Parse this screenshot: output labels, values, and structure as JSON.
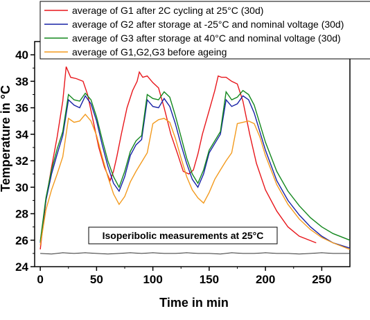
{
  "chart_data": {
    "type": "line",
    "xlabel": "Time in min",
    "ylabel": "Temperature in °C",
    "xlim": [
      -5,
      275
    ],
    "ylim": [
      24,
      41
    ],
    "x_ticks": [
      0,
      50,
      100,
      150,
      200,
      250
    ],
    "y_ticks": [
      24,
      26,
      28,
      30,
      32,
      34,
      36,
      38,
      40
    ],
    "grid": false,
    "legend_position": "top",
    "annotation": "Isoperibolic measurements at 25°C",
    "series": [
      {
        "name": "average of G1 after 2C cycling at 25°C (30d)",
        "color": "#e8161b",
        "x": [
          0,
          5,
          10,
          15,
          20,
          23,
          27,
          32,
          38,
          42,
          47,
          52,
          57,
          62,
          65,
          68,
          72,
          77,
          82,
          86,
          88,
          91,
          95,
          100,
          105,
          110,
          116,
          122,
          127,
          132,
          136,
          140,
          144,
          150,
          155,
          158,
          161,
          165,
          170,
          175,
          180,
          186,
          192,
          200,
          210,
          220,
          230,
          245
        ],
        "y": [
          25.3,
          29.0,
          31.5,
          33.8,
          36.5,
          39.1,
          38.3,
          38.2,
          38.0,
          37.0,
          35.0,
          33.0,
          31.5,
          30.5,
          31.2,
          32.3,
          34.0,
          36.0,
          37.3,
          38.0,
          38.7,
          38.3,
          38.4,
          37.9,
          37.5,
          36.0,
          34.0,
          32.5,
          31.2,
          31.0,
          31.3,
          32.5,
          34.0,
          35.8,
          37.3,
          38.4,
          38.3,
          38.3,
          38.0,
          37.8,
          36.5,
          34.0,
          31.8,
          29.8,
          28.2,
          27.0,
          26.3,
          25.8
        ]
      },
      {
        "name": "average of G2 after storage at -25°C and nominal voltage (30d)",
        "color": "#1620a6",
        "x": [
          0,
          5,
          10,
          15,
          20,
          25,
          30,
          35,
          40,
          45,
          50,
          55,
          60,
          65,
          70,
          75,
          80,
          85,
          90,
          95,
          100,
          105,
          110,
          115,
          120,
          125,
          130,
          135,
          140,
          145,
          150,
          155,
          160,
          165,
          170,
          175,
          180,
          185,
          190,
          200,
          210,
          220,
          230,
          240,
          250,
          260,
          275
        ],
        "y": [
          25.8,
          29.0,
          31.0,
          32.5,
          33.9,
          36.6,
          36.2,
          36.0,
          36.9,
          36.3,
          35.0,
          33.2,
          31.6,
          30.3,
          29.7,
          30.8,
          32.4,
          33.2,
          33.6,
          36.6,
          36.1,
          36.0,
          36.7,
          36.1,
          34.8,
          33.2,
          31.8,
          30.6,
          30.0,
          31.0,
          32.6,
          33.3,
          34.0,
          36.6,
          36.1,
          36.3,
          36.9,
          36.6,
          35.6,
          32.8,
          30.5,
          29.0,
          27.9,
          27.0,
          26.3,
          25.8,
          25.4
        ]
      },
      {
        "name": "average of G3 after storage at 40°C and nominal voltage (30d)",
        "color": "#12871d",
        "x": [
          0,
          5,
          10,
          15,
          20,
          25,
          30,
          35,
          40,
          45,
          50,
          55,
          60,
          65,
          70,
          75,
          80,
          85,
          90,
          95,
          100,
          105,
          110,
          115,
          120,
          125,
          130,
          135,
          140,
          145,
          150,
          155,
          160,
          165,
          170,
          175,
          180,
          185,
          190,
          200,
          210,
          220,
          230,
          240,
          250,
          260,
          275
        ],
        "y": [
          25.9,
          29.2,
          31.3,
          32.9,
          34.2,
          37.0,
          36.6,
          36.5,
          37.1,
          36.6,
          35.3,
          33.6,
          32.0,
          30.8,
          30.0,
          31.2,
          32.7,
          33.5,
          33.9,
          37.0,
          36.7,
          36.6,
          37.2,
          36.8,
          35.4,
          33.8,
          32.2,
          31.0,
          30.3,
          31.3,
          32.8,
          33.5,
          34.2,
          37.2,
          36.6,
          36.8,
          37.3,
          37.0,
          36.2,
          33.4,
          31.2,
          29.7,
          28.6,
          27.7,
          27.0,
          26.5,
          26.0
        ]
      },
      {
        "name": "average of G1,G2,G3 before ageing",
        "color": "#f39a1d",
        "x": [
          0,
          5,
          10,
          15,
          20,
          25,
          30,
          35,
          40,
          45,
          50,
          55,
          60,
          65,
          70,
          75,
          80,
          85,
          90,
          95,
          100,
          105,
          110,
          115,
          120,
          125,
          130,
          135,
          140,
          145,
          150,
          155,
          160,
          165,
          170,
          175,
          180,
          185,
          190,
          195,
          200,
          210,
          220,
          230,
          240,
          250,
          260,
          275
        ],
        "y": [
          25.6,
          28.3,
          29.8,
          31.0,
          32.3,
          35.2,
          34.9,
          35.0,
          35.5,
          35.0,
          33.9,
          32.3,
          30.8,
          29.5,
          28.7,
          29.3,
          30.4,
          31.2,
          31.9,
          32.6,
          34.8,
          35.1,
          35.2,
          34.9,
          33.7,
          32.2,
          30.8,
          29.8,
          29.2,
          28.8,
          29.6,
          30.6,
          31.3,
          32.0,
          32.6,
          34.8,
          34.9,
          35.0,
          34.8,
          33.8,
          32.4,
          30.2,
          28.7,
          27.6,
          26.8,
          26.2,
          25.8,
          25.3
        ]
      },
      {
        "name": "",
        "color": "#333333",
        "x": [
          0,
          10,
          20,
          30,
          40,
          50,
          60,
          70,
          80,
          90,
          100,
          110,
          120,
          130,
          140,
          150,
          160,
          170,
          180,
          190,
          200,
          210,
          220,
          230,
          240,
          250,
          260,
          275
        ],
        "y": [
          25.0,
          24.95,
          25.05,
          25.0,
          25.05,
          25.0,
          24.95,
          25.0,
          25.05,
          25.0,
          25.05,
          25.0,
          25.0,
          25.05,
          25.0,
          25.0,
          24.95,
          25.05,
          25.0,
          25.0,
          25.05,
          25.0,
          25.0,
          24.95,
          25.0,
          25.05,
          25.0,
          25.0
        ]
      }
    ]
  }
}
